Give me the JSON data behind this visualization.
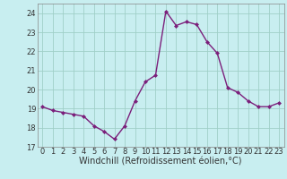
{
  "x": [
    0,
    1,
    2,
    3,
    4,
    5,
    6,
    7,
    8,
    9,
    10,
    11,
    12,
    13,
    14,
    15,
    16,
    17,
    18,
    19,
    20,
    21,
    22,
    23
  ],
  "y": [
    19.1,
    18.9,
    18.8,
    18.7,
    18.6,
    18.1,
    17.8,
    17.4,
    18.1,
    19.4,
    20.4,
    20.75,
    24.1,
    23.35,
    23.55,
    23.4,
    22.5,
    21.9,
    20.1,
    19.85,
    19.4,
    19.1,
    19.1,
    19.3
  ],
  "line_color": "#7b1f7b",
  "marker": "D",
  "marker_size": 2.0,
  "linewidth": 1.0,
  "bg_color": "#c8eef0",
  "grid_color": "#a0cfc8",
  "xlabel": "Windchill (Refroidissement éolien,°C)",
  "xlim": [
    -0.5,
    23.5
  ],
  "ylim": [
    17,
    24.5
  ],
  "yticks": [
    17,
    18,
    19,
    20,
    21,
    22,
    23,
    24
  ],
  "xticks": [
    0,
    1,
    2,
    3,
    4,
    5,
    6,
    7,
    8,
    9,
    10,
    11,
    12,
    13,
    14,
    15,
    16,
    17,
    18,
    19,
    20,
    21,
    22,
    23
  ],
  "xlabel_fontsize": 7.0,
  "tick_fontsize": 6.0
}
